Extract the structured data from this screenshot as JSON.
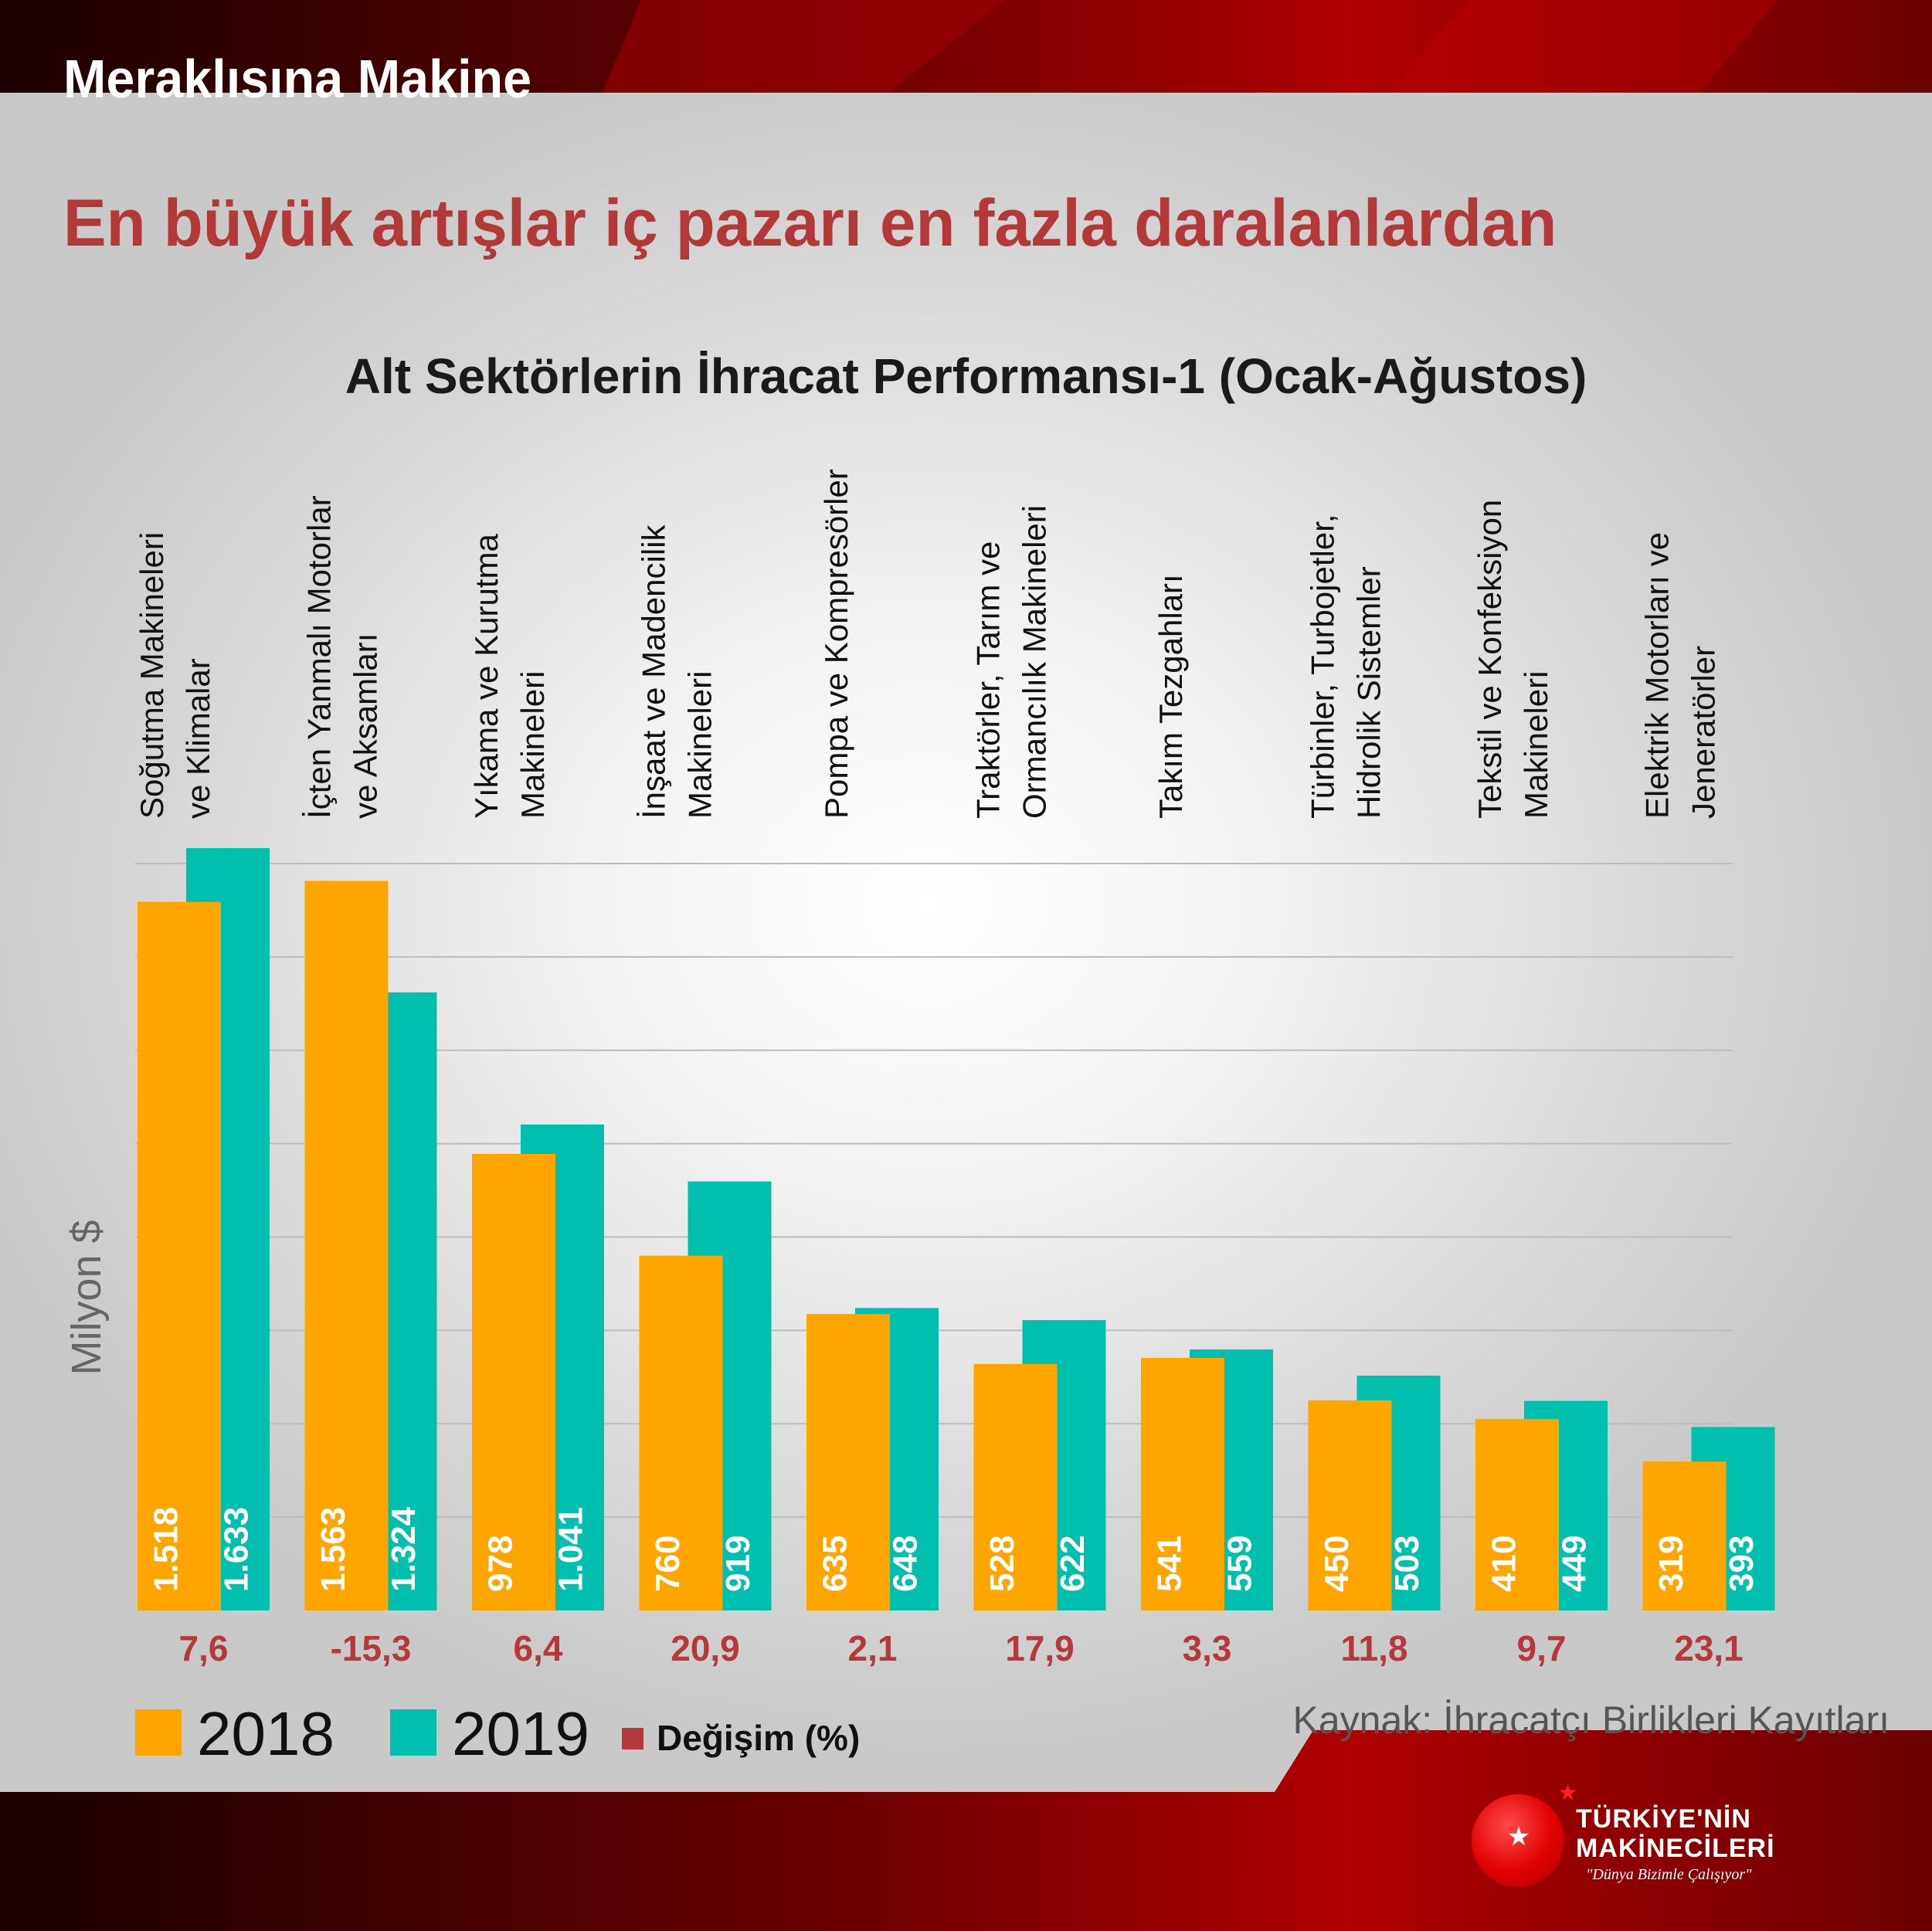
{
  "header": {
    "title": "Meraklısına Makine"
  },
  "headline": "En büyük artışlar iç pazarı en fazla daralanlardan",
  "source": "Kaynak: İhracatçı Birlikleri Kayıtları",
  "colors": {
    "series_2018": "#ffa500",
    "series_2019": "#00bfae",
    "change": "#b5383a",
    "headline": "#b33838",
    "frame": "#8b0000"
  },
  "legend": {
    "item_2018": "2018",
    "item_2019": "2019",
    "item_change": "Değişim (%)"
  },
  "logo": {
    "line1": "TÜRKİYE'NİN",
    "line2": "MAKİNECİLERİ",
    "tagline": "\"Dünya Bizimle Çalışıyor\""
  },
  "chart_data": {
    "type": "bar",
    "title": "Alt Sektörlerin İhracat Performansı-1 (Ocak-Ağustos)",
    "ylabel": "Milyon $",
    "ylim": [
      0,
      1600
    ],
    "grid": true,
    "legend_position": "bottom-left",
    "categories": [
      [
        "Soğutma Makineleri",
        "ve Klimalar"
      ],
      [
        "İçten Yanmalı Motorlar",
        "ve Aksamları"
      ],
      [
        "Yıkama ve Kurutma",
        "Makineleri"
      ],
      [
        "İnşaat ve Madencilik",
        "Makineleri"
      ],
      [
        "Pompa ve Kompresörler"
      ],
      [
        "Traktörler, Tarım ve",
        "Ormancılık Makineleri"
      ],
      [
        "Takım Tezgahları"
      ],
      [
        "Türbinler, Turbojetler,",
        "Hidrolik Sistemler"
      ],
      [
        "Tekstil ve Konfeksiyon",
        "Makineleri"
      ],
      [
        "Elektrik Motorları ve",
        "Jeneratörler"
      ]
    ],
    "series": [
      {
        "name": "2018",
        "values": [
          1518,
          1563,
          978,
          760,
          635,
          528,
          541,
          450,
          410,
          319
        ],
        "labels": [
          "1.518",
          "1.563",
          "978",
          "760",
          "635",
          "528",
          "541",
          "450",
          "410",
          "319"
        ]
      },
      {
        "name": "2019",
        "values": [
          1633,
          1324,
          1041,
          919,
          648,
          622,
          559,
          503,
          449,
          393
        ],
        "labels": [
          "1.633",
          "1.324",
          "1.041",
          "919",
          "648",
          "622",
          "559",
          "503",
          "449",
          "393"
        ]
      }
    ],
    "change_percent": [
      "7,6",
      "-15,3",
      "6,4",
      "20,9",
      "2,1",
      "17,9",
      "3,3",
      "11,8",
      "9,7",
      "23,1"
    ]
  }
}
